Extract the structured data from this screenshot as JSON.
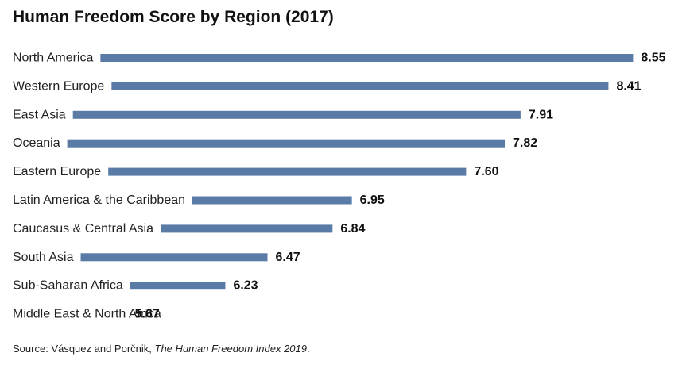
{
  "chart_data": {
    "type": "bar",
    "orientation": "horizontal",
    "title": "Human Freedom Score by Region (2017)",
    "categories": [
      "North America",
      "Western Europe",
      "East Asia",
      "Oceania",
      "Eastern Europe",
      "Latin America & the Caribbean",
      "Caucasus & Central Asia",
      "South Asia",
      "Sub-Saharan Africa",
      "Middle East & North Africa"
    ],
    "values": [
      8.55,
      8.41,
      7.91,
      7.82,
      7.6,
      6.95,
      6.84,
      6.47,
      6.23,
      5.67
    ],
    "value_labels": [
      "8.55",
      "8.41",
      "7.91",
      "7.82",
      "7.60",
      "6.95",
      "6.84",
      "6.47",
      "6.23",
      "5.67"
    ],
    "bar_color": "#5a7ba6",
    "grid": false,
    "legend": "none"
  },
  "source": {
    "prefix": "Source: Vásquez and Porčnik, ",
    "work": "The Human Freedom Index 2019",
    "suffix": "."
  }
}
